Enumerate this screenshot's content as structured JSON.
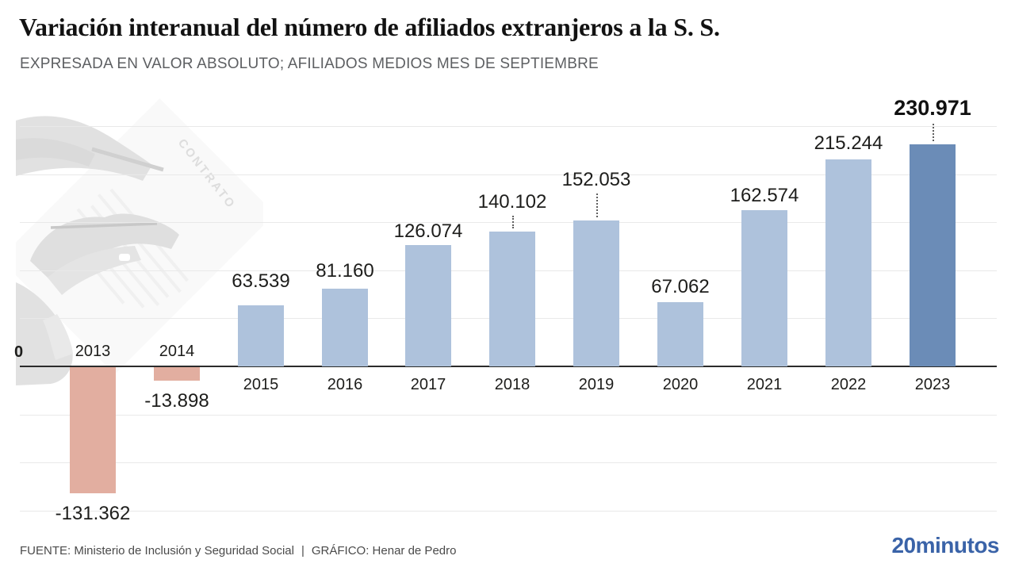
{
  "header": {
    "title": "Variación interanual del número de afiliados extranjeros a la S. S.",
    "subtitle": "EXPRESADA EN VALOR ABSOLUTO; AFILIADOS MEDIOS MES DE SEPTIEMBRE"
  },
  "chart_data": {
    "type": "bar",
    "title": "Variación interanual del número de afiliados extranjeros a la S. S.",
    "subtitle": "EXPRESADA EN VALOR ABSOLUTO; AFILIADOS MEDIOS MES DE SEPTIEMBRE",
    "categories": [
      "2013",
      "2014",
      "2015",
      "2016",
      "2017",
      "2018",
      "2019",
      "2020",
      "2021",
      "2022",
      "2023"
    ],
    "values": [
      -131362,
      -13898,
      63539,
      81160,
      126074,
      140102,
      152053,
      67062,
      162574,
      215244,
      230971
    ],
    "ylim": [
      -150000,
      250000
    ],
    "grid_step": 50000,
    "grid": true,
    "zero_axis_label": "0",
    "colors": {
      "positive": "#aec2dc",
      "negative": "#e2aea0",
      "highlight": "#6b8cb7"
    },
    "points": [
      {
        "year": "2013",
        "value": -131362,
        "label": "-131.362",
        "color": "negative",
        "gap": 13
      },
      {
        "year": "2014",
        "value": -13898,
        "label": "-13.898",
        "color": "negative",
        "gap": 13
      },
      {
        "year": "2015",
        "value": 63539,
        "label": "63.539",
        "color": "positive",
        "gap": 17
      },
      {
        "year": "2016",
        "value": 81160,
        "label": "81.160",
        "color": "positive",
        "gap": 9
      },
      {
        "year": "2017",
        "value": 126074,
        "label": "126.074",
        "color": "positive",
        "gap": 4
      },
      {
        "year": "2018",
        "value": 140102,
        "label": "140.102",
        "color": "positive",
        "gap": 24,
        "leader": true
      },
      {
        "year": "2019",
        "value": 152053,
        "label": "152.053",
        "color": "positive",
        "gap": 38,
        "leader": true
      },
      {
        "year": "2020",
        "value": 67062,
        "label": "67.062",
        "color": "positive",
        "gap": 6
      },
      {
        "year": "2021",
        "value": 162574,
        "label": "162.574",
        "color": "positive",
        "gap": 5
      },
      {
        "year": "2022",
        "value": 215244,
        "label": "215.244",
        "color": "positive",
        "gap": 7
      },
      {
        "year": "2023",
        "value": 230971,
        "label": "230.971",
        "color": "highlight",
        "gap": 30,
        "leader": true,
        "bold": true
      }
    ]
  },
  "watermark": {
    "document_text": "CONTRATO"
  },
  "footer": {
    "source": "FUENTE: Ministerio de Inclusión y Seguridad Social",
    "separator": "|",
    "credit": "GRÁFICO: Henar de Pedro",
    "logo": "20minutos"
  }
}
